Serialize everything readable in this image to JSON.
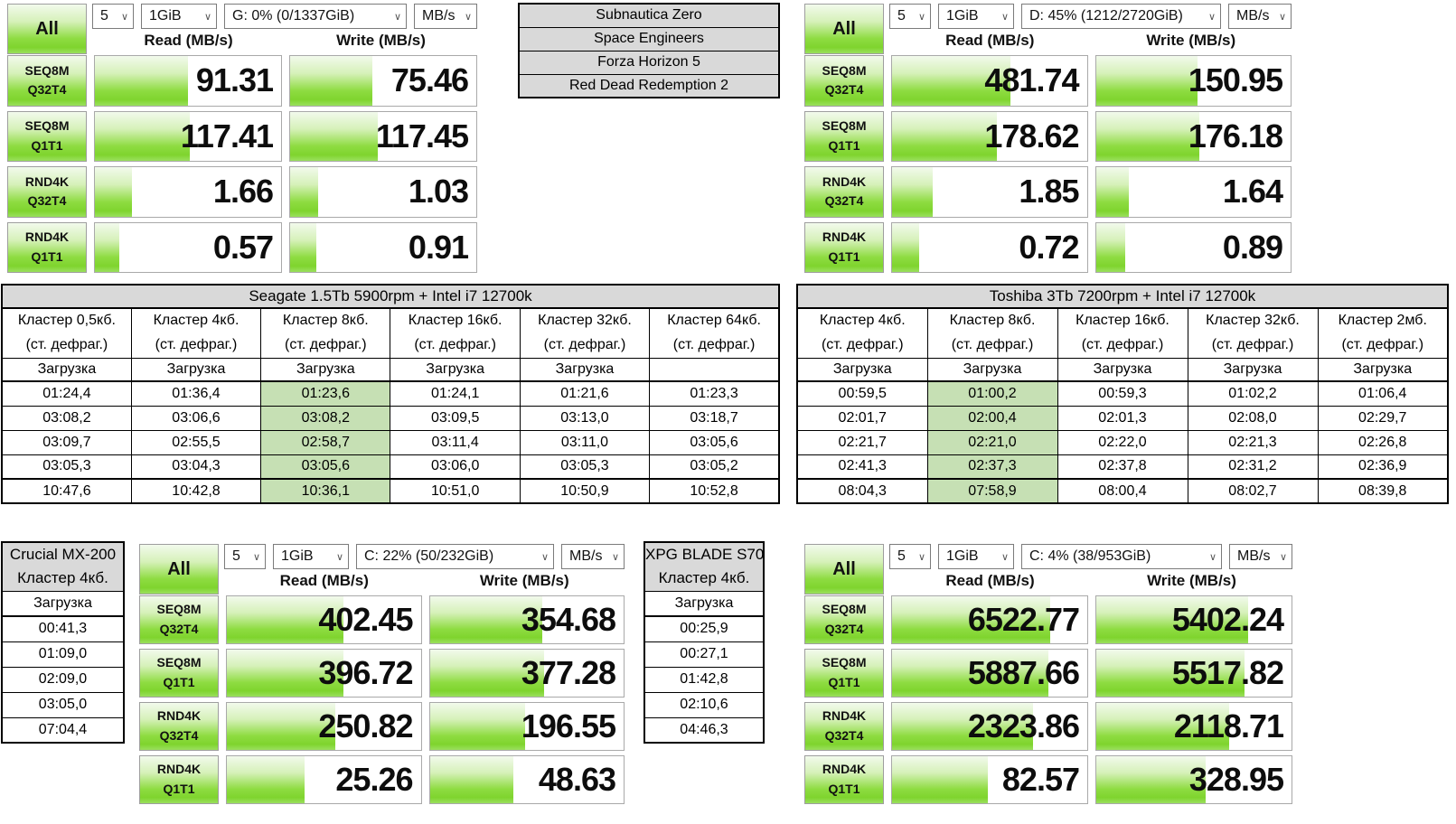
{
  "colors": {
    "accent_green": "#7fd42e",
    "accent_green_light": "#f2faec",
    "highlight_cell_green": "#c6e0b4",
    "header_gray": "#d9d9d9",
    "corner_orange": "#e8860d"
  },
  "games": [
    "Subnautica Zero",
    "Space Engineers",
    "Forza Horizon 5",
    "Red Dead Redemption 2"
  ],
  "cdm_panels": [
    {
      "name": "drive-g",
      "all_label": "All",
      "toolbar": {
        "count": "5",
        "size": "1GiB",
        "drive": "G: 0% (0/1337GiB)",
        "unit": "MB/s"
      },
      "read_header": "Read (MB/s)",
      "write_header": "Write (MB/s)",
      "rows": [
        {
          "test": "SEQ8M",
          "qt": "Q32T4",
          "read": "91.31",
          "write": "75.46",
          "read_fill": 50,
          "write_fill": 44
        },
        {
          "test": "SEQ8M",
          "qt": "Q1T1",
          "read": "117.41",
          "write": "117.45",
          "read_fill": 51,
          "write_fill": 47
        },
        {
          "test": "RND4K",
          "qt": "Q32T4",
          "read": "1.66",
          "write": "1.03",
          "read_fill": 20,
          "write_fill": 15
        },
        {
          "test": "RND4K",
          "qt": "Q1T1",
          "read": "0.57",
          "write": "0.91",
          "read_fill": 13,
          "write_fill": 14
        }
      ]
    },
    {
      "name": "drive-d",
      "all_label": "All",
      "toolbar": {
        "count": "5",
        "size": "1GiB",
        "drive": "D: 45% (1212/2720GiB)",
        "unit": "MB/s"
      },
      "read_header": "Read (MB/s)",
      "write_header": "Write (MB/s)",
      "rows": [
        {
          "test": "SEQ8M",
          "qt": "Q32T4",
          "read": "481.74",
          "write": "150.95",
          "read_fill": 61,
          "write_fill": 52
        },
        {
          "test": "SEQ8M",
          "qt": "Q1T1",
          "read": "178.62",
          "write": "176.18",
          "read_fill": 54,
          "write_fill": 53
        },
        {
          "test": "RND4K",
          "qt": "Q32T4",
          "read": "1.85",
          "write": "1.64",
          "read_fill": 21,
          "write_fill": 17
        },
        {
          "test": "RND4K",
          "qt": "Q1T1",
          "read": "0.72",
          "write": "0.89",
          "read_fill": 14,
          "write_fill": 15
        }
      ]
    },
    {
      "name": "drive-c-22",
      "all_label": "All",
      "toolbar": {
        "count": "5",
        "size": "1GiB",
        "drive": "C: 22% (50/232GiB)",
        "unit": "MB/s"
      },
      "read_header": "Read (MB/s)",
      "write_header": "Write (MB/s)",
      "rows": [
        {
          "test": "SEQ8M",
          "qt": "Q32T4",
          "read": "402.45",
          "write": "354.68",
          "read_fill": 60,
          "write_fill": 58
        },
        {
          "test": "SEQ8M",
          "qt": "Q1T1",
          "read": "396.72",
          "write": "377.28",
          "read_fill": 60,
          "write_fill": 59
        },
        {
          "test": "RND4K",
          "qt": "Q32T4",
          "read": "250.82",
          "write": "196.55",
          "read_fill": 56,
          "write_fill": 49
        },
        {
          "test": "RND4K",
          "qt": "Q1T1",
          "read": "25.26",
          "write": "48.63",
          "read_fill": 40,
          "write_fill": 43
        }
      ]
    },
    {
      "name": "drive-c-4",
      "all_label": "All",
      "toolbar": {
        "count": "5",
        "size": "1GiB",
        "drive": "C: 4% (38/953GiB)",
        "unit": "MB/s"
      },
      "read_header": "Read (MB/s)",
      "write_header": "Write (MB/s)",
      "rows": [
        {
          "test": "SEQ8M",
          "qt": "Q32T4",
          "read": "6522.77",
          "write": "5402.24",
          "read_fill": 81,
          "write_fill": 78
        },
        {
          "test": "SEQ8M",
          "qt": "Q1T1",
          "read": "5887.66",
          "write": "5517.82",
          "read_fill": 80,
          "write_fill": 76
        },
        {
          "test": "RND4K",
          "qt": "Q32T4",
          "read": "2323.86",
          "write": "2118.71",
          "read_fill": 72,
          "write_fill": 68
        },
        {
          "test": "RND4K",
          "qt": "Q1T1",
          "read": "82.57",
          "write": "328.95",
          "read_fill": 49,
          "write_fill": 56
        }
      ]
    }
  ],
  "cluster_tables": [
    {
      "title": "Seagate 1.5Tb 5900rpm + Intel i7 12700k",
      "highlight_col": 2,
      "columns": [
        {
          "line1": "Кластер 0,5кб.",
          "line2": "(ст. дефраг.)",
          "sub": "Загрузка"
        },
        {
          "line1": "Кластер 4кб.",
          "line2": "(ст. дефраг.)",
          "sub": "Загрузка"
        },
        {
          "line1": "Кластер 8кб.",
          "line2": "(ст. дефраг.)",
          "sub": "Загрузка"
        },
        {
          "line1": "Кластер 16кб.",
          "line2": "(ст. дефраг.)",
          "sub": "Загрузка"
        },
        {
          "line1": "Кластер 32кб.",
          "line2": "(ст. дефраг.)",
          "sub": "Загрузка"
        },
        {
          "line1": "Кластер 64кб.",
          "line2": "(ст. дефраг.)",
          "sub": ""
        }
      ],
      "rows": [
        [
          "01:24,4",
          "01:36,4",
          "01:23,6",
          "01:24,1",
          "01:21,6",
          "01:23,3"
        ],
        [
          "03:08,2",
          "03:06,6",
          "03:08,2",
          "03:09,5",
          "03:13,0",
          "03:18,7"
        ],
        [
          "03:09,7",
          "02:55,5",
          "02:58,7",
          "03:11,4",
          "03:11,0",
          "03:05,6"
        ],
        [
          "03:05,3",
          "03:04,3",
          "03:05,6",
          "03:06,0",
          "03:05,3",
          "03:05,2"
        ],
        [
          "10:47,6",
          "10:42,8",
          "10:36,1",
          "10:51,0",
          "10:50,9",
          "10:52,8"
        ]
      ]
    },
    {
      "title": "Toshiba 3Tb 7200rpm + Intel i7 12700k",
      "highlight_col": 1,
      "columns": [
        {
          "line1": "Кластер 4кб.",
          "line2": "(ст. дефраг.)",
          "sub": "Загрузка"
        },
        {
          "line1": "Кластер 8кб.",
          "line2": "(ст. дефраг.)",
          "sub": "Загрузка"
        },
        {
          "line1": "Кластер 16кб.",
          "line2": "(ст. дефраг.)",
          "sub": "Загрузка"
        },
        {
          "line1": "Кластер 32кб.",
          "line2": "(ст. дефраг.)",
          "sub": "Загрузка"
        },
        {
          "line1": "Кластер 2мб.",
          "line2": "(ст. дефраг.)",
          "sub": "Загрузка"
        }
      ],
      "rows": [
        [
          "00:59,5",
          "01:00,2",
          "00:59,3",
          "01:02,2",
          "01:06,4"
        ],
        [
          "02:01,7",
          "02:00,4",
          "02:01,3",
          "02:08,0",
          "02:29,7"
        ],
        [
          "02:21,7",
          "02:21,0",
          "02:22,0",
          "02:21,3",
          "02:26,8"
        ],
        [
          "02:41,3",
          "02:37,3",
          "02:37,8",
          "02:31,2",
          "02:36,9"
        ],
        [
          "08:04,3",
          "07:58,9",
          "08:00,4",
          "08:02,7",
          "08:39,8"
        ]
      ]
    }
  ],
  "mini_tables": [
    {
      "title_line1": "Crucial MX-200",
      "title_line2": "Кластер 4кб.",
      "sub": "Загрузка",
      "values": [
        "00:41,3",
        "01:09,0",
        "02:09,0",
        "03:05,0",
        "07:04,4"
      ]
    },
    {
      "title_line1": "XPG BLADE S70",
      "title_line2": "Кластер 4кб.",
      "sub": "Загрузка",
      "values": [
        "00:25,9",
        "00:27,1",
        "01:42,8",
        "02:10,6",
        "04:46,3"
      ]
    }
  ]
}
